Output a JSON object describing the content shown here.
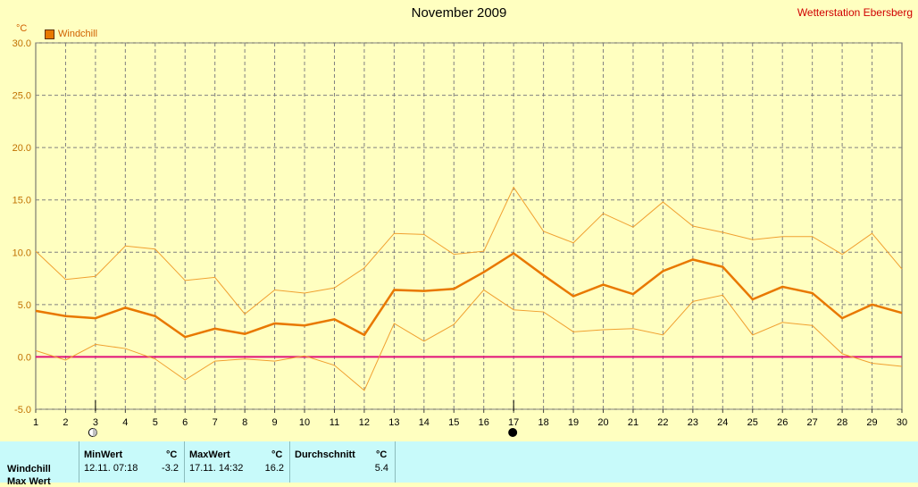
{
  "header": {
    "title": "November 2009",
    "station": "Wetterstation Ebersberg",
    "unit": "°C",
    "legend_label": "Windchill"
  },
  "colors": {
    "background": "#ffffc0",
    "main_line": "#e87800",
    "band_line": "#f0a030",
    "zero_line": "#e0107a",
    "grid": "#808080",
    "stats_bg": "#c8fafa"
  },
  "chart_data": {
    "type": "line",
    "title": "November 2009",
    "ylabel": "°C",
    "ylim": [
      -5,
      30
    ],
    "yticks": [
      "-5.0",
      "0.0",
      "5.0",
      "10.0",
      "15.0",
      "20.0",
      "25.0",
      "30.0"
    ],
    "x": [
      1,
      2,
      3,
      4,
      5,
      6,
      7,
      8,
      9,
      10,
      11,
      12,
      13,
      14,
      15,
      16,
      17,
      18,
      19,
      20,
      21,
      22,
      23,
      24,
      25,
      26,
      27,
      28,
      29,
      30
    ],
    "xticks": [
      "1",
      "2",
      "3",
      "4",
      "5",
      "6",
      "7",
      "8",
      "9",
      "10",
      "11",
      "12",
      "13",
      "14",
      "15",
      "16",
      "17",
      "18",
      "19",
      "20",
      "21",
      "22",
      "23",
      "24",
      "25",
      "26",
      "27",
      "28",
      "29",
      "30"
    ],
    "grid": true,
    "legend_position": "top-left",
    "series": [
      {
        "name": "Windchill",
        "role": "mean",
        "values": [
          4.4,
          3.9,
          3.7,
          4.7,
          3.9,
          1.9,
          2.7,
          2.2,
          3.2,
          3.0,
          3.6,
          2.1,
          6.4,
          6.3,
          6.5,
          8.1,
          9.9,
          7.8,
          5.8,
          6.9,
          6.0,
          8.2,
          9.3,
          8.6,
          5.5,
          6.7,
          6.1,
          3.7,
          5.0,
          4.2
        ]
      },
      {
        "role": "max",
        "values": [
          10.1,
          7.4,
          7.7,
          10.6,
          10.3,
          7.3,
          7.6,
          4.1,
          6.4,
          6.1,
          6.6,
          8.5,
          11.8,
          11.7,
          9.8,
          10.1,
          16.2,
          12.0,
          10.9,
          13.7,
          12.4,
          14.8,
          12.5,
          11.9,
          11.2,
          11.5,
          11.5,
          9.8,
          11.8,
          8.4
        ]
      },
      {
        "role": "min",
        "values": [
          0.6,
          -0.3,
          1.2,
          0.8,
          -0.2,
          -2.2,
          -0.4,
          -0.2,
          -0.4,
          0.1,
          -0.8,
          -3.2,
          3.2,
          1.5,
          3.1,
          6.4,
          4.5,
          4.3,
          2.4,
          2.6,
          2.7,
          2.1,
          5.3,
          5.9,
          2.1,
          3.3,
          3.0,
          0.3,
          -0.6,
          -0.9
        ]
      }
    ],
    "reference_line": 0,
    "markers": [
      {
        "x": 3,
        "icon": "moon-first-quarter-icon"
      },
      {
        "x": 17,
        "icon": "new-moon-icon"
      }
    ]
  },
  "stats": {
    "row_label": "Windchill",
    "row2_label": "Max Wert",
    "min": {
      "header": "MinWert",
      "unit": "°C",
      "datetime": "12.11.  07:18",
      "value": "-3.2"
    },
    "max": {
      "header": "MaxWert",
      "unit": "°C",
      "datetime": "17.11.  14:32",
      "value": "16.2"
    },
    "avg": {
      "header": "Durchschnitt",
      "unit": "°C",
      "value": "5.4"
    }
  }
}
